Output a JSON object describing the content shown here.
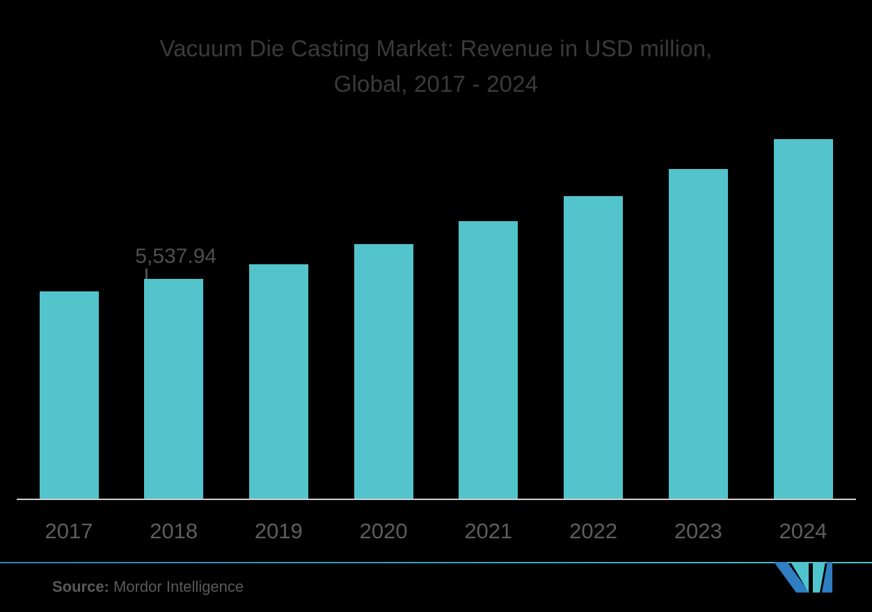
{
  "chart_data": {
    "type": "bar",
    "title": "Vacuum Die Casting Market: Revenue in USD million, Global, 2017 - 2024",
    "title_lines": [
      "Vacuum Die Casting Market: Revenue in USD million,",
      "Global, 2017 - 2024"
    ],
    "categories": [
      "2017",
      "2018",
      "2019",
      "2020",
      "2021",
      "2022",
      "2023",
      "2024"
    ],
    "values": [
      5222,
      5537.94,
      5906,
      6414,
      6992,
      7623,
      8307,
      9060
    ],
    "data_label": {
      "index": 1,
      "text": "5,537.94"
    },
    "xlabel": "",
    "ylabel": "",
    "ylim": [
      0,
      9800
    ],
    "grid": false,
    "legend": false,
    "note": "Only the 2018 bar carries an explicit value label (5,537.94); other values are estimated from bar heights."
  },
  "colors": {
    "background": "#000000",
    "bar": "#53C4CB",
    "title_text": "#3A3A3C",
    "year_text": "#5E5E60",
    "data_label_text": "#4F4F51",
    "axis_line": "#D2D2D2",
    "source_text": "#5A5A5C",
    "logo_blue": "#2F7EC2",
    "logo_teal": "#4EC5CC"
  },
  "footer": {
    "source_label": "Source:",
    "source_value": "Mordor Intelligence",
    "logo_name": "mordor-intelligence-m-logo"
  }
}
